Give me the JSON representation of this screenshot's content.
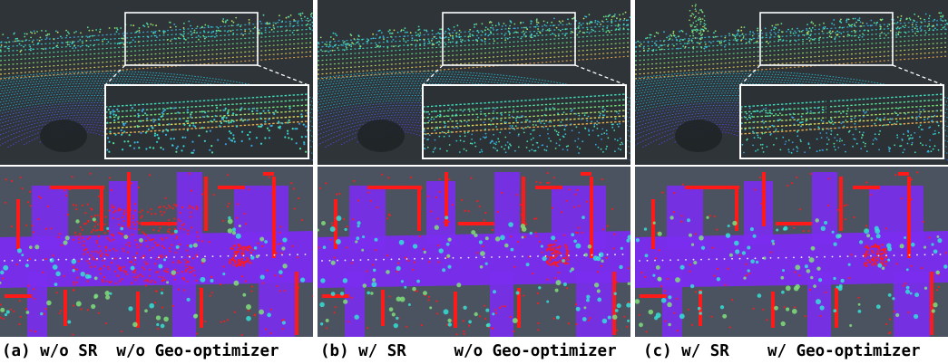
{
  "figure": {
    "panels": [
      {
        "id": "a",
        "caption": "(a) w/o SR  w/o Geo-optimizer",
        "variant": "no-sr-no-geo"
      },
      {
        "id": "b",
        "caption": "(b) w/ SR     w/o Geo-optimizer",
        "variant": "sr-no-geo"
      },
      {
        "id": "c",
        "caption": "(c) w/ SR    w/ Geo-optimizer",
        "variant": "sr-geo"
      }
    ],
    "colors": {
      "top_background": "#2e3438",
      "bottom_background": "#4b5360",
      "road_purple": "#7a2cf0",
      "wall_red": "#ff1a1a",
      "cyan_highlight": "#34e0d8",
      "green_highlight": "#7fe07a",
      "zoom_box": "#ffffff"
    }
  }
}
